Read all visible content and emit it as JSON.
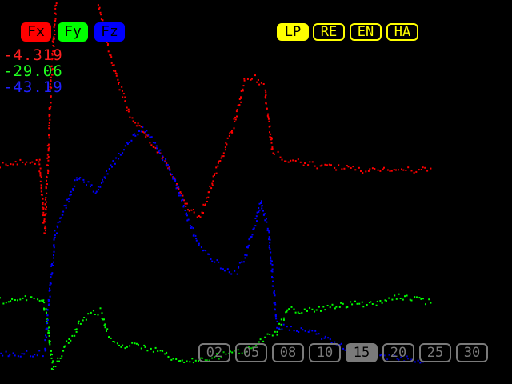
{
  "channels": [
    {
      "label": "Fx",
      "color": "#ff0000"
    },
    {
      "label": "Fy",
      "color": "#00ff00"
    },
    {
      "label": "Fz",
      "color": "#0000ff"
    }
  ],
  "readouts": [
    {
      "value": "-4.319",
      "color": "#ff2020"
    },
    {
      "value": "-29.06",
      "color": "#20ff20"
    },
    {
      "value": "-43.19",
      "color": "#2020ff"
    }
  ],
  "modes": [
    {
      "label": "LP",
      "active": true
    },
    {
      "label": "RE",
      "active": false
    },
    {
      "label": "EN",
      "active": false
    },
    {
      "label": "HA",
      "active": false
    }
  ],
  "selector": {
    "options": [
      "02",
      "05",
      "08",
      "10",
      "15",
      "20",
      "25",
      "30"
    ],
    "selected": "15"
  },
  "chart_data": {
    "type": "scatter",
    "series": [
      {
        "name": "Fx",
        "color": "#ff0000",
        "x": [
          0,
          48,
          55,
          62,
          70,
          85,
          100,
          120,
          140,
          160,
          175,
          190,
          205,
          220,
          235,
          250,
          270,
          290,
          305,
          318,
          330,
          340,
          360,
          390,
          420,
          450,
          480,
          510,
          540
        ],
        "y": [
          205,
          200,
          290,
          120,
          -20,
          -40,
          -30,
          0,
          80,
          140,
          160,
          180,
          200,
          230,
          262,
          270,
          210,
          160,
          100,
          97,
          110,
          190,
          200,
          205,
          208,
          212,
          210,
          212,
          212
        ]
      },
      {
        "name": "Fy",
        "color": "#00ff00",
        "x": [
          0,
          30,
          52,
          58,
          65,
          72,
          80,
          90,
          100,
          115,
          125,
          135,
          150,
          170,
          190,
          210,
          230,
          250,
          270,
          290,
          310,
          330,
          345,
          360,
          380,
          400,
          420,
          440,
          460,
          480,
          500,
          520,
          540
        ],
        "y": [
          375,
          373,
          372,
          400,
          460,
          450,
          430,
          420,
          400,
          390,
          388,
          420,
          430,
          432,
          435,
          445,
          452,
          448,
          445,
          440,
          435,
          420,
          415,
          385,
          388,
          385,
          380,
          380,
          378,
          375,
          370,
          372,
          378
        ]
      },
      {
        "name": "Fz",
        "color": "#0000ff",
        "x": [
          0,
          30,
          55,
          60,
          68,
          80,
          95,
          110,
          120,
          135,
          150,
          165,
          175,
          185,
          200,
          215,
          230,
          245,
          260,
          280,
          295,
          305,
          315,
          325,
          335,
          345,
          360,
          390,
          420,
          450,
          480,
          510,
          530
        ],
        "y": [
          440,
          442,
          440,
          380,
          290,
          260,
          220,
          230,
          240,
          210,
          190,
          170,
          160,
          165,
          190,
          220,
          260,
          300,
          320,
          335,
          340,
          320,
          290,
          250,
          290,
          405,
          410,
          415,
          430,
          440,
          445,
          448,
          450
        ]
      }
    ]
  }
}
